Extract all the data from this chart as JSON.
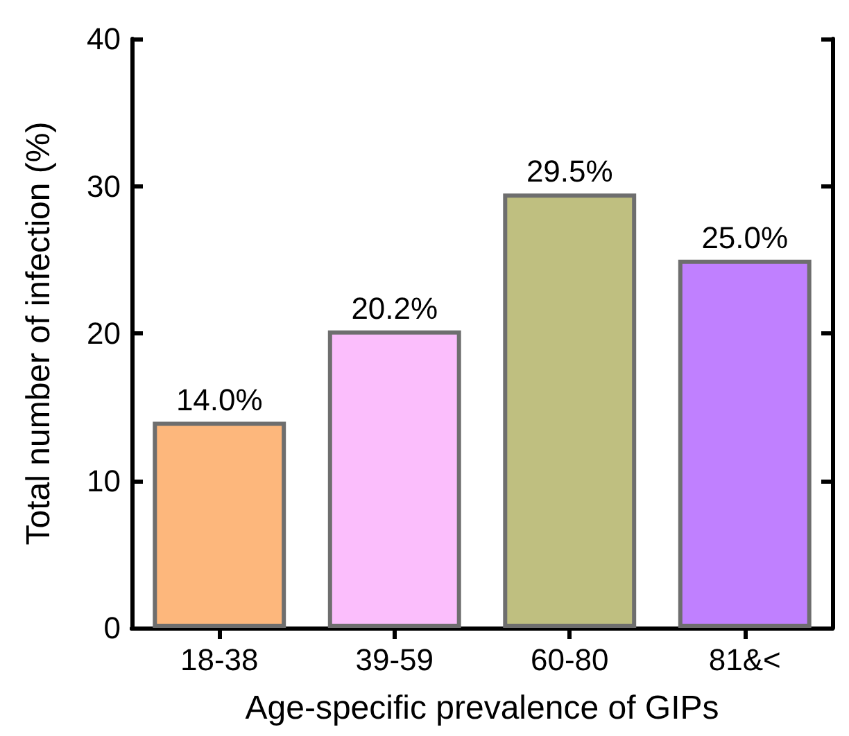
{
  "chart_data": {
    "type": "bar",
    "xlabel": "Age-specific prevalence of GIPs",
    "ylabel": "Total number of infection (%)",
    "categories": [
      "18-38",
      "39-59",
      "60-80",
      "81&<"
    ],
    "values": [
      14.0,
      20.2,
      29.5,
      25.0
    ],
    "value_labels": [
      "14.0%",
      "20.2%",
      "29.5%",
      "25.0%"
    ],
    "colors": [
      "#fdb77c",
      "#fbbefc",
      "#bfbf80",
      "#c080ff"
    ],
    "ylim": [
      0,
      40
    ],
    "yticks": [
      0,
      10,
      20,
      30,
      40
    ],
    "grid": false
  }
}
